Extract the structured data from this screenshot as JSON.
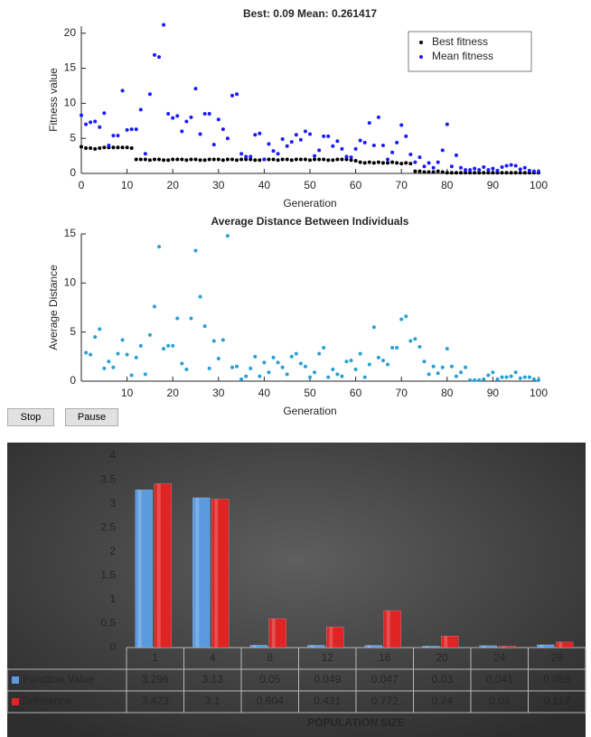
{
  "chart_data": [
    {
      "type": "scatter",
      "title": "Best: 0.09 Mean: 0.261417",
      "xlabel": "Generation",
      "ylabel": "Fitness value",
      "xlim": [
        0,
        100
      ],
      "xticks": [
        0,
        10,
        20,
        30,
        40,
        50,
        60,
        70,
        80,
        90,
        100
      ],
      "ylim": [
        0,
        21
      ],
      "yticks": [
        0,
        5,
        10,
        15,
        20
      ],
      "legend": "northeast",
      "x": [
        0,
        1,
        2,
        3,
        4,
        5,
        6,
        7,
        8,
        9,
        10,
        11,
        12,
        13,
        14,
        15,
        16,
        17,
        18,
        19,
        20,
        21,
        22,
        23,
        24,
        25,
        26,
        27,
        28,
        29,
        30,
        31,
        32,
        33,
        34,
        35,
        36,
        37,
        38,
        39,
        40,
        41,
        42,
        43,
        44,
        45,
        46,
        47,
        48,
        49,
        50,
        51,
        52,
        53,
        54,
        55,
        56,
        57,
        58,
        59,
        60,
        61,
        62,
        63,
        64,
        65,
        66,
        67,
        68,
        69,
        70,
        71,
        72,
        73,
        74,
        75,
        76,
        77,
        78,
        79,
        80,
        81,
        82,
        83,
        84,
        85,
        86,
        87,
        88,
        89,
        90,
        91,
        92,
        93,
        94,
        95,
        96,
        97,
        98,
        99,
        100
      ],
      "series": [
        {
          "name": "Best fitness",
          "color": "#000000",
          "values": [
            3.8,
            3.6,
            3.6,
            3.5,
            3.6,
            3.7,
            3.7,
            3.7,
            3.7,
            3.7,
            3.7,
            3.6,
            2.0,
            2.0,
            2.0,
            1.9,
            2.0,
            2.0,
            1.9,
            1.9,
            2.0,
            2.0,
            2.0,
            1.9,
            2.0,
            2.0,
            1.9,
            1.9,
            2.0,
            2.0,
            2.0,
            1.9,
            2.0,
            2.0,
            1.9,
            2.0,
            2.0,
            2.0,
            1.9,
            1.9,
            2.0,
            2.0,
            2.0,
            1.9,
            2.0,
            2.0,
            1.9,
            2.0,
            2.0,
            2.0,
            1.9,
            2.0,
            2.0,
            2.0,
            1.9,
            1.9,
            2.0,
            2.0,
            2.0,
            1.9,
            1.8,
            1.6,
            1.5,
            1.6,
            1.5,
            1.6,
            1.5,
            1.5,
            1.6,
            1.5,
            1.4,
            1.5,
            1.4,
            0.3,
            0.3,
            0.2,
            0.2,
            0.2,
            0.3,
            0.2,
            0.1,
            0.1,
            0.1,
            0.1,
            0.1,
            0.1,
            0.1,
            0.1,
            0.1,
            0.1,
            0.1,
            0.1,
            0.1,
            0.1,
            0.1,
            0.1,
            0.1,
            0.1,
            0.1,
            0.1,
            0.09
          ]
        },
        {
          "name": "Mean fitness",
          "color": "#1a1aff",
          "values": [
            8.3,
            7.0,
            7.3,
            7.4,
            6.6,
            8.6,
            4.0,
            5.4,
            5.4,
            11.8,
            6.2,
            6.3,
            6.3,
            9.1,
            2.8,
            11.3,
            16.9,
            16.6,
            21.2,
            8.5,
            7.9,
            8.2,
            6.0,
            7.4,
            8.0,
            12.1,
            5.6,
            8.5,
            8.5,
            4.1,
            7.7,
            6.3,
            5.0,
            11.1,
            11.3,
            2.8,
            2.4,
            2.4,
            5.5,
            5.7,
            2.0,
            4.2,
            3.2,
            2.8,
            4.9,
            3.9,
            4.5,
            5.5,
            4.8,
            6.0,
            5.6,
            2.5,
            3.3,
            5.3,
            5.3,
            3.9,
            4.6,
            3.5,
            2.4,
            2.3,
            3.5,
            4.7,
            4.4,
            7.2,
            4.0,
            8.0,
            4.0,
            2.0,
            3.0,
            4.4,
            6.9,
            5.3,
            2.7,
            1.6,
            2.3,
            1.0,
            1.5,
            0.8,
            1.6,
            3.3,
            7.0,
            1.0,
            2.6,
            0.8,
            0.5,
            0.5,
            0.7,
            0.5,
            0.9,
            0.5,
            0.7,
            0.4,
            0.9,
            1.1,
            1.2,
            1.1,
            0.6,
            0.8,
            0.4,
            0.3,
            0.26
          ]
        }
      ]
    },
    {
      "type": "scatter",
      "title": "Average Distance Between Individuals",
      "xlabel": "Generation",
      "ylabel": "Average Distance",
      "xlim": [
        0,
        100
      ],
      "xticks": [
        10,
        20,
        30,
        40,
        50,
        60,
        70,
        80,
        90,
        100
      ],
      "ylim": [
        0,
        15
      ],
      "yticks": [
        0,
        5,
        10,
        15
      ],
      "x": [
        1,
        2,
        3,
        4,
        5,
        6,
        7,
        8,
        9,
        10,
        11,
        12,
        13,
        14,
        15,
        16,
        17,
        18,
        19,
        20,
        21,
        22,
        23,
        24,
        25,
        26,
        27,
        28,
        29,
        30,
        31,
        32,
        33,
        34,
        35,
        36,
        37,
        38,
        39,
        40,
        41,
        42,
        43,
        44,
        45,
        46,
        47,
        48,
        49,
        50,
        51,
        52,
        53,
        54,
        55,
        56,
        57,
        58,
        59,
        60,
        61,
        62,
        63,
        64,
        65,
        66,
        67,
        68,
        69,
        70,
        71,
        72,
        73,
        74,
        75,
        76,
        77,
        78,
        79,
        80,
        81,
        82,
        83,
        84,
        85,
        86,
        87,
        88,
        89,
        90,
        91,
        92,
        93,
        94,
        95,
        96,
        97,
        98,
        99,
        100
      ],
      "series": [
        {
          "color": "#2a9fd6",
          "values": [
            2.9,
            2.7,
            4.5,
            5.3,
            1.3,
            2.0,
            1.4,
            2.8,
            4.2,
            2.7,
            0.6,
            2.4,
            3.6,
            0.7,
            4.7,
            7.6,
            13.7,
            3.3,
            3.6,
            3.6,
            6.4,
            1.8,
            1.2,
            6.4,
            13.3,
            8.6,
            5.6,
            1.3,
            4.1,
            2.3,
            4.2,
            14.8,
            1.4,
            1.5,
            0.2,
            0.5,
            1.3,
            2.5,
            0.5,
            1.9,
            0.9,
            2.4,
            1.9,
            1.4,
            0.7,
            2.5,
            2.8,
            1.8,
            1.5,
            0.4,
            0.9,
            2.8,
            3.4,
            0.4,
            1.2,
            0.7,
            0.5,
            2.0,
            2.1,
            1.2,
            2.8,
            0.4,
            1.7,
            5.5,
            2.4,
            2.1,
            1.7,
            3.4,
            3.4,
            6.3,
            6.6,
            4.1,
            4.3,
            3.5,
            2.0,
            0.7,
            1.5,
            0.8,
            1.4,
            3.3,
            1.5,
            0.5,
            0.9,
            1.4,
            0.1,
            0.1,
            0.1,
            0.2,
            0.6,
            0.9,
            0.2,
            0.4,
            0.4,
            0.5,
            0.9,
            0.3,
            0.4,
            0.4,
            0.2,
            0.1
          ]
        }
      ]
    },
    {
      "type": "bar",
      "xlabel": "POPULATION SIZE",
      "categories": [
        "1",
        "4",
        "8",
        "12",
        "16",
        "20",
        "24",
        "28"
      ],
      "ylim": [
        0,
        4
      ],
      "yticks": [
        0,
        0.5,
        1,
        1.5,
        2,
        2.5,
        3,
        3.5,
        4
      ],
      "series": [
        {
          "name": "Function Value",
          "color": "#5a9be0",
          "values": [
            3.296,
            3.13,
            0.05,
            0.049,
            0.047,
            0.03,
            0.041,
            0.059
          ]
        },
        {
          "name": "Difference",
          "color": "#e02424",
          "values": [
            3.423,
            3.1,
            0.604,
            0.431,
            0.772,
            0.24,
            0.03,
            0.117
          ]
        }
      ]
    }
  ],
  "buttons": [
    "Stop",
    "Pause"
  ]
}
